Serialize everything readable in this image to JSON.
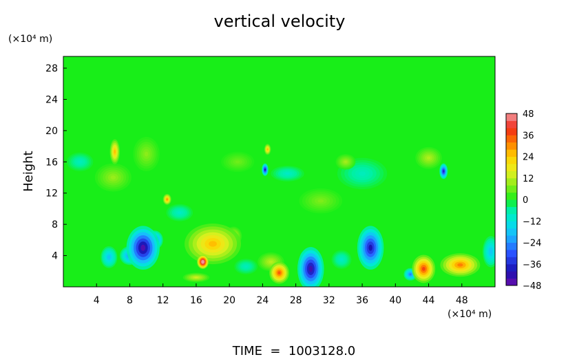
{
  "chart_data": {
    "type": "heatmap",
    "title": "vertical velocity",
    "ylabel": "Height",
    "y_unit": "(×10⁴ m)",
    "x_unit": "(×10⁴ m)",
    "footer": "TIME  =  1003128.0",
    "xlim": [
      0,
      52
    ],
    "ylim": [
      0,
      29.5
    ],
    "x_ticks": [
      4,
      8,
      12,
      16,
      20,
      24,
      28,
      32,
      36,
      40,
      44,
      48
    ],
    "y_ticks": [
      4,
      8,
      12,
      16,
      20,
      24,
      28
    ],
    "colorbar": {
      "ticks": [
        48,
        36,
        24,
        12,
        0,
        -12,
        -24,
        -36,
        -48
      ],
      "tick_labels": [
        "48",
        "36",
        "24",
        "12",
        "0",
        "−12",
        "−24",
        "−36",
        "−48"
      ],
      "range": [
        -48,
        48
      ],
      "stops": [
        {
          "v": -48,
          "color": "#6a0dad"
        },
        {
          "v": -40,
          "color": "#1a10b0"
        },
        {
          "v": -30,
          "color": "#2a52ff"
        },
        {
          "v": -20,
          "color": "#1ab8ff"
        },
        {
          "v": -12,
          "color": "#00e6e0"
        },
        {
          "v": -5,
          "color": "#00f0a0"
        },
        {
          "v": 0,
          "color": "#18ee18"
        },
        {
          "v": 8,
          "color": "#8cec1a"
        },
        {
          "v": 16,
          "color": "#e8f020"
        },
        {
          "v": 24,
          "color": "#ffd000"
        },
        {
          "v": 32,
          "color": "#ff7a00"
        },
        {
          "v": 40,
          "color": "#f02818"
        },
        {
          "v": 48,
          "color": "#f29aa0"
        }
      ]
    },
    "features": [
      {
        "x": 9.6,
        "y": 5.0,
        "rx": 2.0,
        "ry": 2.8,
        "v": -46
      },
      {
        "x": 11.0,
        "y": 6.0,
        "rx": 1.0,
        "ry": 1.2,
        "v": -30
      },
      {
        "x": 8.0,
        "y": 4.0,
        "rx": 1.2,
        "ry": 1.2,
        "v": -25
      },
      {
        "x": 16.8,
        "y": 3.2,
        "rx": 0.7,
        "ry": 0.9,
        "v": 58
      },
      {
        "x": 18.0,
        "y": 5.5,
        "rx": 3.4,
        "ry": 2.6,
        "v": 26
      },
      {
        "x": 20.5,
        "y": 6.5,
        "rx": 1.0,
        "ry": 1.2,
        "v": 14
      },
      {
        "x": 29.8,
        "y": 2.3,
        "rx": 1.6,
        "ry": 2.8,
        "v": -44
      },
      {
        "x": 29.5,
        "y": 3.8,
        "rx": 1.0,
        "ry": 1.0,
        "v": -20
      },
      {
        "x": 26.0,
        "y": 1.8,
        "rx": 1.2,
        "ry": 1.4,
        "v": 36
      },
      {
        "x": 25.0,
        "y": 3.2,
        "rx": 1.6,
        "ry": 1.2,
        "v": 12
      },
      {
        "x": 37.0,
        "y": 5.0,
        "rx": 1.6,
        "ry": 2.8,
        "v": -40
      },
      {
        "x": 43.4,
        "y": 2.3,
        "rx": 1.4,
        "ry": 1.8,
        "v": 38
      },
      {
        "x": 47.8,
        "y": 2.8,
        "rx": 2.4,
        "ry": 1.5,
        "v": 32
      },
      {
        "x": 41.8,
        "y": 1.6,
        "rx": 0.8,
        "ry": 0.8,
        "v": -26
      },
      {
        "x": 6.2,
        "y": 17.3,
        "rx": 0.6,
        "ry": 1.6,
        "v": 26
      },
      {
        "x": 24.3,
        "y": 15.0,
        "rx": 0.4,
        "ry": 0.8,
        "v": -40
      },
      {
        "x": 24.6,
        "y": 17.6,
        "rx": 0.4,
        "ry": 0.7,
        "v": 26
      },
      {
        "x": 45.8,
        "y": 14.8,
        "rx": 0.5,
        "ry": 1.0,
        "v": -38
      },
      {
        "x": 12.5,
        "y": 11.2,
        "rx": 0.5,
        "ry": 0.7,
        "v": 30
      },
      {
        "x": 10.0,
        "y": 17.0,
        "rx": 1.6,
        "ry": 2.2,
        "v": 8
      },
      {
        "x": 6.0,
        "y": 14.0,
        "rx": 2.2,
        "ry": 1.8,
        "v": 9
      },
      {
        "x": 36.0,
        "y": 14.5,
        "rx": 3.0,
        "ry": 2.0,
        "v": -8
      },
      {
        "x": 34.0,
        "y": 16.0,
        "rx": 1.2,
        "ry": 1.0,
        "v": 10
      },
      {
        "x": 27.0,
        "y": 14.5,
        "rx": 2.0,
        "ry": 1.0,
        "v": -9
      },
      {
        "x": 44.0,
        "y": 16.5,
        "rx": 1.6,
        "ry": 1.4,
        "v": 11
      },
      {
        "x": 21.0,
        "y": 16.0,
        "rx": 2.0,
        "ry": 1.3,
        "v": 6
      },
      {
        "x": 2.0,
        "y": 16.0,
        "rx": 1.6,
        "ry": 1.2,
        "v": -8
      },
      {
        "x": 31.0,
        "y": 11.0,
        "rx": 2.6,
        "ry": 1.6,
        "v": 7
      },
      {
        "x": 14.0,
        "y": 9.5,
        "rx": 1.6,
        "ry": 1.1,
        "v": -9
      },
      {
        "x": 5.5,
        "y": 3.8,
        "rx": 1.0,
        "ry": 1.4,
        "v": -18
      },
      {
        "x": 22.0,
        "y": 2.6,
        "rx": 1.4,
        "ry": 1.0,
        "v": -8
      },
      {
        "x": 33.5,
        "y": 3.5,
        "rx": 1.2,
        "ry": 1.2,
        "v": -9
      },
      {
        "x": 51.5,
        "y": 4.5,
        "rx": 1.0,
        "ry": 2.0,
        "v": -18
      },
      {
        "x": 16.0,
        "y": 1.2,
        "rx": 1.6,
        "ry": 0.6,
        "v": 14
      }
    ]
  }
}
